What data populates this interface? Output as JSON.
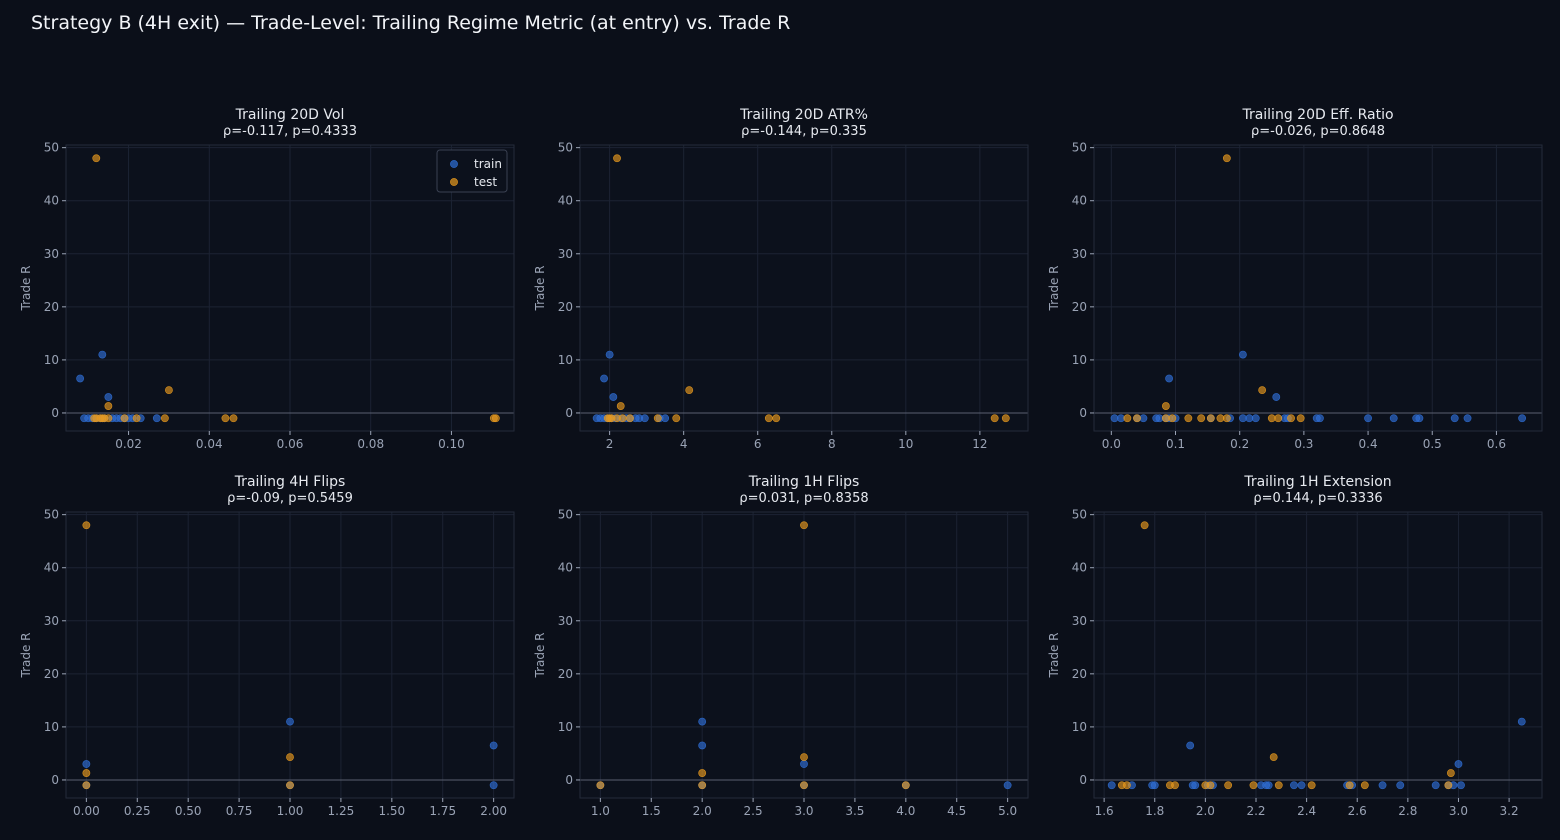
{
  "title": "Strategy B (4H exit) — Trade-Level: Trailing Regime Metric (at entry) vs. Trade R",
  "colors": {
    "background": "#0b0f19",
    "axes_bg": "#0c111c",
    "grid": "#1c2333",
    "zero_line": "#5a6070",
    "text": "#e6e9ef",
    "tick_text": "#9aa3b5",
    "train": "#2f6fd6",
    "test": "#e89a1e"
  },
  "legend": {
    "location": "upper right",
    "entries": [
      "train",
      "test"
    ]
  },
  "chart_data": [
    {
      "type": "scatter",
      "title": "Trailing 20D Vol",
      "subtitle": "ρ=-0.117, p=0.4333",
      "ylabel": "Trade R",
      "xlim": [
        0.0045,
        0.1155
      ],
      "ylim": [
        -3.4,
        50.5
      ],
      "xticks": [
        0.02,
        0.04,
        0.06,
        0.08,
        0.1
      ],
      "xtick_labels": [
        "0.02",
        "0.04",
        "0.06",
        "0.08",
        "0.10"
      ],
      "yticks": [
        0,
        10,
        20,
        30,
        40,
        50
      ],
      "grid": true,
      "legend": true,
      "series": [
        {
          "name": "train",
          "x": [
            0.009,
            0.01,
            0.011,
            0.012,
            0.013,
            0.0135,
            0.014,
            0.016,
            0.017,
            0.018,
            0.019,
            0.02,
            0.021,
            0.023,
            0.027,
            0.008,
            0.0135,
            0.015
          ],
          "y": [
            -1,
            -1,
            -1,
            -1,
            -1,
            -1,
            -1,
            -1,
            -1,
            -1,
            -1,
            -1,
            -1,
            -1,
            -1,
            6.5,
            11,
            3
          ]
        },
        {
          "name": "test",
          "x": [
            0.0115,
            0.012,
            0.013,
            0.0135,
            0.014,
            0.015,
            0.019,
            0.022,
            0.029,
            0.044,
            0.046,
            0.1105,
            0.111,
            0.012,
            0.015,
            0.03
          ],
          "y": [
            -1,
            -1,
            -1,
            -1,
            -1,
            -1,
            -1,
            -1,
            -1,
            -1,
            -1,
            -1,
            -1,
            48,
            1.3,
            4.3
          ]
        }
      ]
    },
    {
      "type": "scatter",
      "title": "Trailing 20D ATR%",
      "subtitle": "ρ=-0.144, p=0.335",
      "ylabel": "Trade R",
      "xlim": [
        1.2,
        13.3
      ],
      "ylim": [
        -3.4,
        50.5
      ],
      "xticks": [
        2,
        4,
        6,
        8,
        10,
        12
      ],
      "xtick_labels": [
        "2",
        "4",
        "6",
        "8",
        "10",
        "12"
      ],
      "yticks": [
        0,
        10,
        20,
        30,
        40,
        50
      ],
      "grid": true,
      "legend": false,
      "series": [
        {
          "name": "train",
          "x": [
            1.65,
            1.75,
            1.85,
            1.95,
            2.05,
            2.15,
            2.3,
            2.45,
            2.55,
            2.7,
            2.8,
            2.95,
            3.35,
            3.5,
            1.85,
            2.0,
            2.1
          ],
          "y": [
            -1,
            -1,
            -1,
            -1,
            -1,
            -1,
            -1,
            -1,
            -1,
            -1,
            -1,
            -1,
            -1,
            -1,
            6.5,
            11,
            3
          ]
        },
        {
          "name": "test",
          "x": [
            1.95,
            2.0,
            2.05,
            2.2,
            2.35,
            2.55,
            3.3,
            3.8,
            6.3,
            6.5,
            12.4,
            12.7,
            2.2,
            2.3,
            4.15
          ],
          "y": [
            -1,
            -1,
            -1,
            -1,
            -1,
            -1,
            -1,
            -1,
            -1,
            -1,
            -1,
            -1,
            48,
            1.3,
            4.3
          ]
        }
      ]
    },
    {
      "type": "scatter",
      "title": "Trailing 20D Eff. Ratio",
      "subtitle": "ρ=-0.026, p=0.8648",
      "ylabel": "Trade R",
      "xlim": [
        -0.027,
        0.671
      ],
      "ylim": [
        -3.4,
        50.5
      ],
      "xticks": [
        0.0,
        0.1,
        0.2,
        0.3,
        0.4,
        0.5,
        0.6
      ],
      "xtick_labels": [
        "0.0",
        "0.1",
        "0.2",
        "0.3",
        "0.4",
        "0.5",
        "0.6"
      ],
      "yticks": [
        0,
        10,
        20,
        30,
        40,
        50
      ],
      "grid": true,
      "legend": false,
      "series": [
        {
          "name": "train",
          "x": [
            0.005,
            0.015,
            0.04,
            0.05,
            0.07,
            0.075,
            0.085,
            0.09,
            0.1,
            0.155,
            0.185,
            0.205,
            0.215,
            0.225,
            0.27,
            0.275,
            0.32,
            0.325,
            0.4,
            0.44,
            0.475,
            0.48,
            0.535,
            0.555,
            0.64,
            0.09,
            0.205,
            0.257
          ],
          "y": [
            -1,
            -1,
            -1,
            -1,
            -1,
            -1,
            -1,
            -1,
            -1,
            -1,
            -1,
            -1,
            -1,
            -1,
            -1,
            -1,
            -1,
            -1,
            -1,
            -1,
            -1,
            -1,
            -1,
            -1,
            -1,
            6.5,
            11,
            3
          ]
        },
        {
          "name": "test",
          "x": [
            0.025,
            0.04,
            0.085,
            0.095,
            0.12,
            0.14,
            0.155,
            0.17,
            0.18,
            0.25,
            0.26,
            0.28,
            0.295,
            0.18,
            0.085,
            0.235
          ],
          "y": [
            -1,
            -1,
            -1,
            -1,
            -1,
            -1,
            -1,
            -1,
            -1,
            -1,
            -1,
            -1,
            -1,
            48,
            1.3,
            4.3
          ]
        }
      ]
    },
    {
      "type": "scatter",
      "title": "Trailing 4H Flips",
      "subtitle": "ρ=-0.09, p=0.5459",
      "ylabel": "Trade R",
      "xlim": [
        -0.1,
        2.1
      ],
      "ylim": [
        -3.4,
        50.5
      ],
      "xticks": [
        0,
        0.25,
        0.5,
        0.75,
        1.0,
        1.25,
        1.5,
        1.75,
        2.0
      ],
      "xtick_labels": [
        "0.00",
        "0.25",
        "0.50",
        "0.75",
        "1.00",
        "1.25",
        "1.50",
        "1.75",
        "2.00"
      ],
      "yticks": [
        0,
        10,
        20,
        30,
        40,
        50
      ],
      "grid": true,
      "legend": false,
      "series": [
        {
          "name": "train",
          "x": [
            0,
            1,
            2,
            0,
            1,
            2
          ],
          "y": [
            -1,
            -1,
            -1,
            3,
            11,
            6.5
          ]
        },
        {
          "name": "test",
          "x": [
            0,
            1,
            0,
            0,
            1
          ],
          "y": [
            -1,
            -1,
            48,
            1.3,
            4.3
          ]
        }
      ]
    },
    {
      "type": "scatter",
      "title": "Trailing 1H Flips",
      "subtitle": "ρ=0.031, p=0.8358",
      "ylabel": "Trade R",
      "xlim": [
        0.8,
        5.2
      ],
      "ylim": [
        -3.4,
        50.5
      ],
      "xticks": [
        1.0,
        1.5,
        2.0,
        2.5,
        3.0,
        3.5,
        4.0,
        4.5,
        5.0
      ],
      "xtick_labels": [
        "1.0",
        "1.5",
        "2.0",
        "2.5",
        "3.0",
        "3.5",
        "4.0",
        "4.5",
        "5.0"
      ],
      "yticks": [
        0,
        10,
        20,
        30,
        40,
        50
      ],
      "grid": true,
      "legend": false,
      "series": [
        {
          "name": "train",
          "x": [
            1,
            2,
            3,
            4,
            5,
            2,
            2,
            3
          ],
          "y": [
            -1,
            -1,
            -1,
            -1,
            -1,
            11,
            6.5,
            3
          ]
        },
        {
          "name": "test",
          "x": [
            1,
            2,
            3,
            4,
            3,
            2,
            3
          ],
          "y": [
            -1,
            -1,
            -1,
            -1,
            48,
            1.3,
            4.3
          ]
        }
      ]
    },
    {
      "type": "scatter",
      "title": "Trailing 1H Extension",
      "subtitle": "ρ=0.144, p=0.3336",
      "ylabel": "Trade R",
      "xlim": [
        1.56,
        3.33
      ],
      "ylim": [
        -3.4,
        50.5
      ],
      "xticks": [
        1.6,
        1.8,
        2.0,
        2.2,
        2.4,
        2.6,
        2.8,
        3.0,
        3.2
      ],
      "xtick_labels": [
        "1.6",
        "1.8",
        "2.0",
        "2.2",
        "2.4",
        "2.6",
        "2.8",
        "3.0",
        "3.2"
      ],
      "yticks": [
        0,
        10,
        20,
        30,
        40,
        50
      ],
      "grid": true,
      "legend": false,
      "series": [
        {
          "name": "train",
          "x": [
            1.63,
            1.71,
            1.79,
            1.8,
            1.95,
            1.96,
            2.01,
            2.03,
            2.22,
            2.24,
            2.25,
            2.35,
            2.38,
            2.56,
            2.58,
            2.7,
            2.77,
            2.91,
            2.96,
            2.98,
            3.01,
            1.94,
            3.25,
            3.0
          ],
          "y": [
            -1,
            -1,
            -1,
            -1,
            -1,
            -1,
            -1,
            -1,
            -1,
            -1,
            -1,
            -1,
            -1,
            -1,
            -1,
            -1,
            -1,
            -1,
            -1,
            -1,
            -1,
            6.5,
            11,
            3
          ]
        },
        {
          "name": "test",
          "x": [
            1.67,
            1.69,
            1.86,
            1.88,
            2.0,
            2.02,
            2.09,
            2.19,
            2.29,
            2.42,
            2.57,
            2.63,
            2.96,
            1.76,
            2.97,
            2.27
          ],
          "y": [
            -1,
            -1,
            -1,
            -1,
            -1,
            -1,
            -1,
            -1,
            -1,
            -1,
            -1,
            -1,
            -1,
            48,
            1.3,
            4.3
          ]
        }
      ]
    }
  ]
}
